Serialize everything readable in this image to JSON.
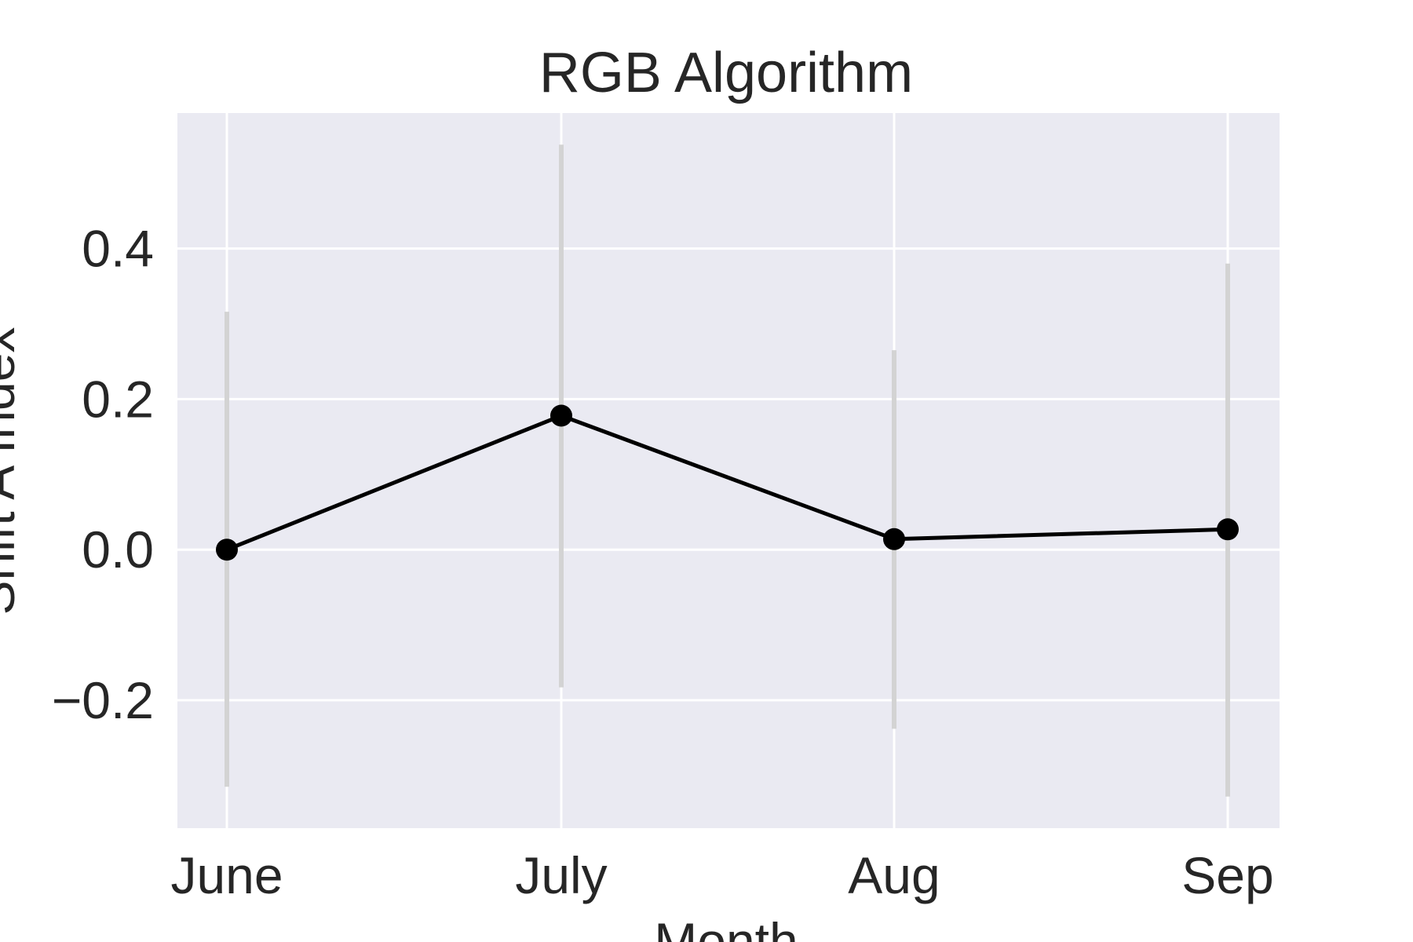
{
  "chart_data": {
    "type": "line",
    "title": "RGB Algorithm",
    "xlabel": "Month",
    "ylabel": "Shift A Index",
    "categories": [
      "June",
      "July",
      "Aug",
      "Sep"
    ],
    "series": [
      {
        "values": [
          0.0,
          0.178,
          0.014,
          0.027
        ],
        "error_low": [
          -0.315,
          -0.183,
          -0.238,
          -0.328
        ],
        "error_high": [
          0.316,
          0.538,
          0.265,
          0.38
        ]
      }
    ],
    "ylim": [
      -0.37,
      0.58
    ],
    "yticks": [
      -0.2,
      0.0,
      0.2,
      0.4
    ],
    "ytick_labels": [
      "−0.2",
      "0.0",
      "0.2",
      "0.4"
    ],
    "grid": true,
    "colors": {
      "background": "#eaeaf2",
      "grid": "#ffffff",
      "line": "#000000",
      "errorbar": "#d3d3d3"
    }
  }
}
